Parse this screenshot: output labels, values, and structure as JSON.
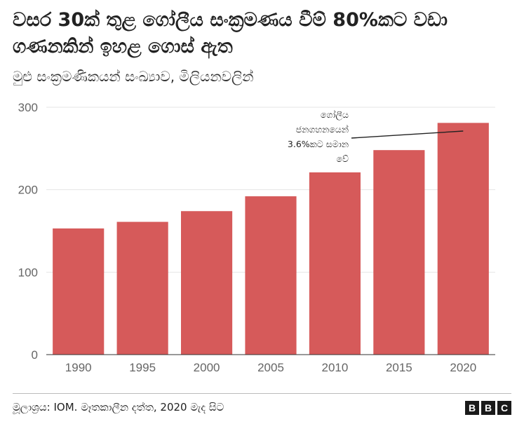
{
  "title": "වසර 30ක් තුළ ගෝලීය සංක්‍රමණය වීම් 80%කට වඩා ගණනකින් ඉහළ ගොස් ඇත",
  "subtitle": "මුළු සංක්‍රමණිකයන් සංඛ්‍යාව, මිලියනවලින්",
  "source": "මූලාශ්‍රය: IOM. මෑතකාලීන දත්ත, 2020 මැද සිට",
  "logo_letters": [
    "B",
    "B",
    "C"
  ],
  "colors": {
    "bar": "#d65a5a",
    "grid": "#e6e6e6",
    "axis": "#333333"
  },
  "chart_data": {
    "type": "bar",
    "categories": [
      "1990",
      "1995",
      "2000",
      "2005",
      "2010",
      "2015",
      "2020"
    ],
    "values": [
      153,
      161,
      174,
      192,
      221,
      248,
      281
    ],
    "ylim": [
      0,
      300
    ],
    "yticks": [
      0,
      100,
      200,
      300
    ],
    "grid": true,
    "annotation": {
      "lines": [
        "ගෝලීය",
        "ජනගහනයෙන්",
        "3.6%කට සමාන",
        "වේ"
      ],
      "target_category": "2020"
    }
  }
}
